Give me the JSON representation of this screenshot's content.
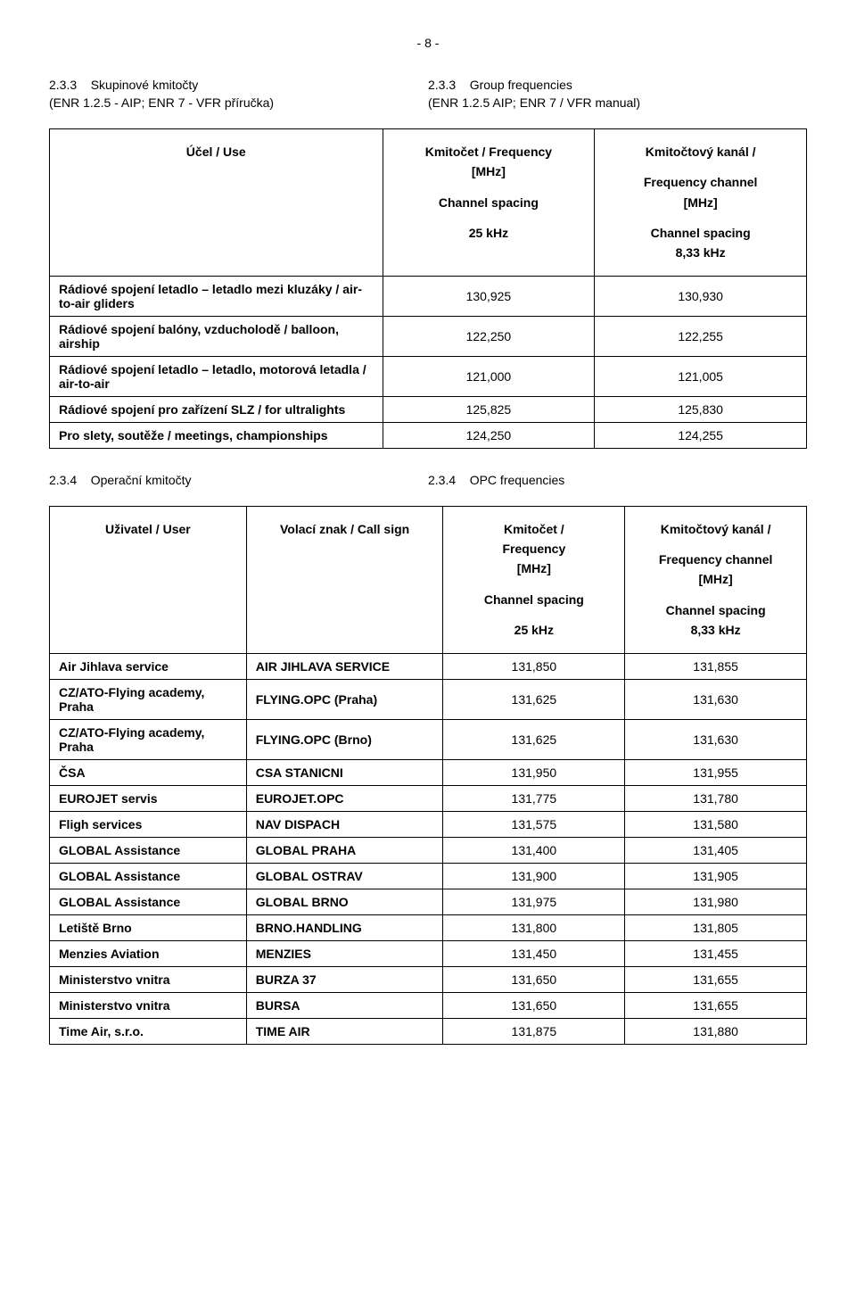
{
  "page_number": "- 8 -",
  "section233": {
    "left": {
      "num": "2.3.3",
      "title": "Skupinové kmitočty",
      "sub": "(ENR 1.2.5 - AIP; ENR 7 - VFR příručka)"
    },
    "right": {
      "num": "2.3.3",
      "title": "Group frequencies",
      "sub": "(ENR 1.2.5 AIP; ENR 7 / VFR manual)"
    }
  },
  "table1": {
    "head": {
      "c1": "Účel / Use",
      "c2a": "Kmitočet / Frequency",
      "c2b": "[MHz]",
      "c2c": "Channel spacing",
      "c2d": "25 kHz",
      "c3a": "Kmitočtový kanál /",
      "c3b": "Frequency channel",
      "c3c": "[MHz]",
      "c3d": "Channel spacing",
      "c3e": "8,33 kHz"
    },
    "rows": [
      {
        "label": "Rádiové spojení letadlo – letadlo mezi kluzáky / air-to-air gliders",
        "f": "130,925",
        "ch": "130,930",
        "bold": true
      },
      {
        "label": "Rádiové spojení balóny, vzducholodě / balloon, airship",
        "f": "122,250",
        "ch": "122,255",
        "bold": true
      },
      {
        "label": "Rádiové spojení letadlo – letadlo, motorová letadla / air-to-air",
        "f": "121,000",
        "ch": "121,005",
        "bold": true
      },
      {
        "label": "Rádiové spojení pro zařízení SLZ / for ultralights",
        "f": "125,825",
        "ch": "125,830",
        "bold": true
      },
      {
        "label": "Pro slety, soutěže / meetings, championships",
        "f": "124,250",
        "ch": "124,255",
        "bold": true
      }
    ]
  },
  "section234": {
    "left": {
      "num": "2.3.4",
      "title": "Operační kmitočty"
    },
    "right": {
      "num": "2.3.4",
      "title": "OPC frequencies"
    }
  },
  "table2": {
    "head": {
      "c1": "Uživatel / User",
      "c2": "Volací znak / Call sign",
      "c3a": "Kmitočet /",
      "c3b": "Frequency",
      "c3c": "[MHz]",
      "c3d": "Channel spacing",
      "c3e": "25 kHz",
      "c4a": "Kmitočtový kanál /",
      "c4b": "Frequency channel",
      "c4c": "[MHz]",
      "c4d": "Channel spacing",
      "c4e": "8,33 kHz"
    },
    "rows": [
      {
        "u": "Air Jihlava service",
        "s": "AIR JIHLAVA SERVICE",
        "f": "131,850",
        "ch": "131,855"
      },
      {
        "u": "CZ/ATO-Flying academy, Praha",
        "s": "FLYING.OPC (Praha)",
        "f": "131,625",
        "ch": "131,630"
      },
      {
        "u": "CZ/ATO-Flying academy, Praha",
        "s": "FLYING.OPC (Brno)",
        "f": "131,625",
        "ch": "131,630"
      },
      {
        "u": "ČSA",
        "s": "CSA STANICNI",
        "f": "131,950",
        "ch": "131,955"
      },
      {
        "u": "EUROJET servis",
        "s": "EUROJET.OPC",
        "f": "131,775",
        "ch": "131,780"
      },
      {
        "u": "Fligh services",
        "s": "NAV DISPACH",
        "f": "131,575",
        "ch": "131,580"
      },
      {
        "u": "GLOBAL Assistance",
        "s": "GLOBAL PRAHA",
        "f": "131,400",
        "ch": "131,405"
      },
      {
        "u": "GLOBAL Assistance",
        "s": "GLOBAL OSTRAV",
        "f": "131,900",
        "ch": "131,905"
      },
      {
        "u": "GLOBAL Assistance",
        "s": "GLOBAL BRNO",
        "f": "131,975",
        "ch": "131,980"
      },
      {
        "u": "Letiště Brno",
        "s": "BRNO.HANDLING",
        "f": "131,800",
        "ch": "131,805"
      },
      {
        "u": "Menzies Aviation",
        "s": "MENZIES",
        "f": "131,450",
        "ch": "131,455"
      },
      {
        "u": "Ministerstvo vnitra",
        "s": "BURZA 37",
        "f": "131,650",
        "ch": "131,655"
      },
      {
        "u": "Ministerstvo vnitra",
        "s": "BURSA",
        "f": "131,650",
        "ch": "131,655"
      },
      {
        "u": "Time Air, s.r.o.",
        "s": "TIME AIR",
        "f": "131,875",
        "ch": "131,880"
      }
    ]
  }
}
